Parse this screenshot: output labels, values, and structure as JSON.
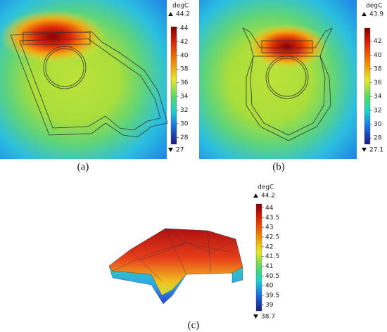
{
  "panels": [
    {
      "caption": "(a)",
      "unit": "degC",
      "max": 44.2,
      "min": 27,
      "ticks": [
        44,
        42,
        40,
        38,
        36,
        34,
        32,
        30,
        28
      ]
    },
    {
      "caption": "(b)",
      "unit": "degC",
      "max": 43.9,
      "min": 27.1,
      "ticks": [
        42,
        40,
        38,
        36,
        34,
        32,
        30,
        28
      ]
    },
    {
      "caption": "(c)",
      "unit": "degC",
      "max": 44.2,
      "min": 38.7,
      "ticks": [
        44,
        43.5,
        43,
        42.5,
        42,
        41.5,
        41,
        40.5,
        40,
        39.5,
        39
      ]
    }
  ]
}
